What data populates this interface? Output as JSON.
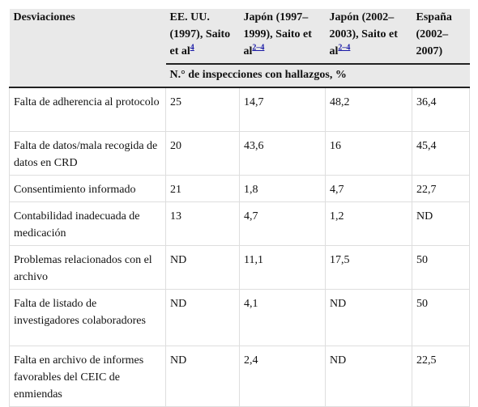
{
  "table": {
    "header": {
      "columns": [
        {
          "text": "Desviaciones"
        },
        {
          "text": "EE. UU. (1997), Saito et al",
          "ref": "4"
        },
        {
          "text": "Japón (1997–1999), Saito et al",
          "ref": "2–4"
        },
        {
          "text": "Japón (2002–2003), Saito et al",
          "ref": "2–4"
        },
        {
          "text": "España (2002–2007)"
        }
      ],
      "subheader": "N.° de inspecciones con hallazgos, %"
    },
    "rows": [
      [
        "Falta de adherencia al protocolo",
        "25",
        "14,7",
        "48,2",
        "36,4"
      ],
      [
        "Falta de datos/mala recogida de datos en CRD",
        "20",
        "43,6",
        "16",
        "45,4"
      ],
      [
        "Consentimiento informado",
        "21",
        "1,8",
        "4,7",
        "22,7"
      ],
      [
        "Contabilidad inadecuada de medicación",
        "13",
        "4,7",
        "1,2",
        "ND"
      ],
      [
        "Problemas relacionados con el archivo",
        "ND",
        "11,1",
        "17,5",
        "50"
      ],
      [
        "Falta de listado de investigadores colaboradores",
        "ND",
        "4,1",
        "ND",
        "50"
      ],
      [
        "Falta en archivo de informes favorables del CEIC de enmiendas",
        "ND",
        "2,4",
        "ND",
        "22,5"
      ]
    ]
  }
}
